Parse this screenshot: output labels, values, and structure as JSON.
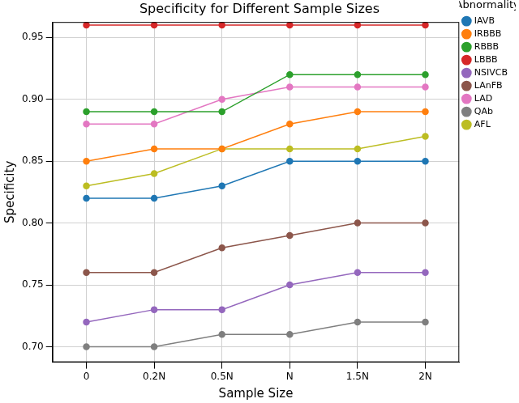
{
  "chart_data": {
    "type": "line",
    "title": "Specificity for Different Sample Sizes",
    "x_label": "Sample Size",
    "y_label": "Specificity",
    "legend_title": "Abnormality",
    "categories": [
      "0",
      "0.2N",
      "0.5N",
      "N",
      "1.5N",
      "2N"
    ],
    "series": [
      {
        "name": "IAVB",
        "color": "#1f77b4",
        "values": [
          0.82,
          0.82,
          0.83,
          0.85,
          0.85,
          0.85
        ]
      },
      {
        "name": "IRBBB",
        "color": "#ff7f0e",
        "values": [
          0.85,
          0.86,
          0.86,
          0.88,
          0.89,
          0.89
        ]
      },
      {
        "name": "RBBB",
        "color": "#2ca02c",
        "values": [
          0.89,
          0.89,
          0.89,
          0.92,
          0.92,
          0.92
        ]
      },
      {
        "name": "LBBB",
        "color": "#d62728",
        "values": [
          0.96,
          0.96,
          0.96,
          0.96,
          0.96,
          0.96
        ]
      },
      {
        "name": "NSIVCB",
        "color": "#9467bd",
        "values": [
          0.72,
          0.73,
          0.73,
          0.75,
          0.76,
          0.76
        ]
      },
      {
        "name": "LAnFB",
        "color": "#8c564b",
        "values": [
          0.76,
          0.76,
          0.78,
          0.79,
          0.8,
          0.8
        ]
      },
      {
        "name": "LAD",
        "color": "#e377c2",
        "values": [
          0.88,
          0.88,
          0.9,
          0.91,
          0.91,
          0.91
        ]
      },
      {
        "name": "QAb",
        "color": "#7f7f7f",
        "values": [
          0.7,
          0.7,
          0.71,
          0.71,
          0.72,
          0.72
        ]
      },
      {
        "name": "AFL",
        "color": "#bcbd22",
        "values": [
          0.83,
          0.84,
          0.86,
          0.86,
          0.86,
          0.87
        ]
      }
    ],
    "ylim": [
      0.6875,
      0.9625
    ],
    "yticks": [
      {
        "value": 0.7,
        "label": "0.70"
      },
      0.75,
      {
        "value": 0.8,
        "label": "0.80"
      },
      0.85,
      {
        "value": 0.9,
        "label": "0.90"
      },
      0.95
    ],
    "grid": true,
    "legend": "right",
    "marker": "circle",
    "line_style": "solid"
  }
}
